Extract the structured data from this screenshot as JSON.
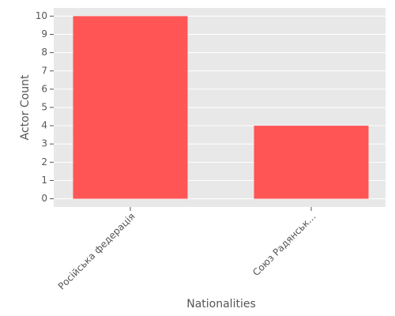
{
  "chart_data": {
    "type": "bar",
    "categories": [
      "Російська федерація",
      "Союз Радянськ…"
    ],
    "values": [
      10,
      4
    ],
    "color": "#ff5555",
    "xlabel": "Nationalities",
    "ylabel": "Actor Count",
    "ylim": [
      -0.45,
      10.45
    ],
    "yticks": [
      0,
      1,
      2,
      3,
      4,
      5,
      6,
      7,
      8,
      9,
      10
    ],
    "grid": true
  }
}
